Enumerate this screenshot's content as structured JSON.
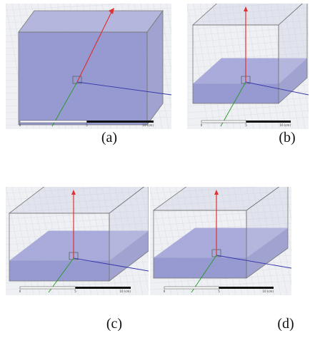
{
  "panels": [
    {
      "label": "(a)",
      "scale": [
        "0",
        "5",
        "10 (cm)"
      ]
    },
    {
      "label": "(b)",
      "scale": [
        "0",
        "5",
        "10 (cm)"
      ]
    },
    {
      "label": "(c)",
      "scale": [
        "0",
        "5",
        "10 (cm)"
      ]
    },
    {
      "label": "(d)",
      "scale": [
        "0",
        "5",
        "10 (cm)"
      ]
    }
  ]
}
